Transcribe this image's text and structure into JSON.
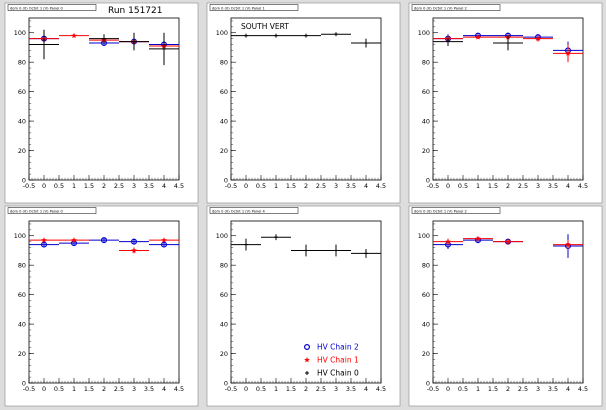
{
  "run_label": "Run 151721",
  "colors": {
    "chain2": "#0000cc",
    "chain1": "#ff0000",
    "chain0": "#000000",
    "pad_bg": "#ffffff",
    "frame_bg": "#dddddd"
  },
  "legend": {
    "entries": [
      {
        "label": "HV Chain 2",
        "color": "#0000cc",
        "marker": "circle-icon"
      },
      {
        "label": "HV Chain 1",
        "color": "#ff0000",
        "marker": "star-icon"
      },
      {
        "label": "HV Chain 0",
        "color": "#000000",
        "marker": "cross-icon"
      }
    ]
  },
  "chart_data": [
    {
      "type": "scatter",
      "title": "dom 0 (0) Octnt 1 (V) Panel 0",
      "annotation": "",
      "xlim": [
        -0.5,
        4.5
      ],
      "ylim": [
        0,
        110
      ],
      "xticks": [
        "-0.5",
        "0",
        "0.5",
        "1",
        "1.5",
        "2",
        "2.5",
        "3",
        "3.5",
        "4",
        "4.5"
      ],
      "yticks": [
        "0",
        "20",
        "40",
        "60",
        "80",
        "100"
      ],
      "series": [
        {
          "name": "HV Chain 2",
          "x": [
            0,
            2,
            3,
            4
          ],
          "y": [
            96,
            93,
            94,
            92
          ],
          "yerr": [
            3,
            2,
            3,
            3
          ]
        },
        {
          "name": "HV Chain 1",
          "x": [
            0,
            1,
            2,
            3,
            4
          ],
          "y": [
            96,
            98,
            95,
            94,
            91
          ],
          "yerr": [
            2,
            1,
            2,
            2,
            2
          ]
        },
        {
          "name": "HV Chain 0",
          "x": [
            0,
            2,
            3,
            4
          ],
          "y": [
            92,
            96,
            94,
            89
          ],
          "yerr": [
            10,
            3,
            6,
            11
          ]
        }
      ]
    },
    {
      "type": "scatter",
      "title": "dom 0 (0) Octnt 1 (V) Panel 1",
      "annotation": "SOUTH VERT",
      "xlim": [
        -0.5,
        4.5
      ],
      "ylim": [
        0,
        110
      ],
      "xticks": [
        "-0.5",
        "0",
        "0.5",
        "1",
        "1.5",
        "2",
        "2.5",
        "3",
        "3.5",
        "4",
        "4.5"
      ],
      "yticks": [
        "0",
        "20",
        "40",
        "60",
        "80",
        "100"
      ],
      "series": [
        {
          "name": "HV Chain 0",
          "x": [
            0,
            1,
            2,
            3,
            4
          ],
          "y": [
            98,
            98,
            98,
            99,
            93
          ],
          "yerr": [
            1,
            1,
            1,
            1,
            3
          ]
        }
      ]
    },
    {
      "type": "scatter",
      "title": "dom 0 (0) Octnt 1 (V) Panel 2",
      "annotation": "",
      "xlim": [
        -0.5,
        4.5
      ],
      "ylim": [
        0,
        110
      ],
      "xticks": [
        "-0.5",
        "0",
        "0.5",
        "1",
        "1.5",
        "2",
        "2.5",
        "3",
        "3.5",
        "4",
        "4.5"
      ],
      "yticks": [
        "0",
        "20",
        "40",
        "60",
        "80",
        "100"
      ],
      "series": [
        {
          "name": "HV Chain 2",
          "x": [
            0,
            1,
            2,
            3,
            4
          ],
          "y": [
            96,
            98,
            98,
            97,
            88
          ],
          "yerr": [
            3,
            1,
            2,
            2,
            6
          ]
        },
        {
          "name": "HV Chain 1",
          "x": [
            0,
            1,
            2,
            3,
            4
          ],
          "y": [
            96,
            97,
            97,
            96,
            86
          ],
          "yerr": [
            2,
            1,
            2,
            2,
            6
          ]
        },
        {
          "name": "HV Chain 0",
          "x": [
            0,
            2
          ],
          "y": [
            94,
            93
          ],
          "yerr": [
            3,
            5
          ]
        }
      ]
    },
    {
      "type": "scatter",
      "title": "dom 0 (0) Octnt 1 (V) Panel 0",
      "annotation": "",
      "xlim": [
        -0.5,
        4.5
      ],
      "ylim": [
        0,
        110
      ],
      "xticks": [
        "-0.5",
        "0",
        "0.5",
        "1",
        "1.5",
        "2",
        "2.5",
        "3",
        "3.5",
        "4",
        "4.5"
      ],
      "yticks": [
        "0",
        "20",
        "40",
        "60",
        "80",
        "100"
      ],
      "series": [
        {
          "name": "HV Chain 2",
          "x": [
            0,
            1,
            2,
            3,
            4
          ],
          "y": [
            94,
            95,
            97,
            96,
            94
          ],
          "yerr": [
            2,
            2,
            2,
            2,
            2
          ]
        },
        {
          "name": "HV Chain 1",
          "x": [
            0,
            1,
            3,
            4
          ],
          "y": [
            97,
            97,
            90,
            97
          ],
          "yerr": [
            1,
            1,
            2,
            1
          ]
        }
      ]
    },
    {
      "type": "scatter",
      "title": "dom 0 (0) Octnt 1 (V) Panel 4",
      "annotation": "",
      "xlim": [
        -0.5,
        4.5
      ],
      "ylim": [
        0,
        110
      ],
      "xticks": [
        "-0.5",
        "0",
        "0.5",
        "1",
        "1.5",
        "2",
        "2.5",
        "3",
        "3.5",
        "4",
        "4.5"
      ],
      "yticks": [
        "0",
        "20",
        "40",
        "60",
        "80",
        "100"
      ],
      "series": [
        {
          "name": "HV Chain 0",
          "x": [
            0,
            1,
            2,
            3,
            4
          ],
          "y": [
            94,
            99,
            90,
            90,
            88
          ],
          "yerr": [
            4,
            2,
            4,
            4,
            3
          ]
        }
      ]
    },
    {
      "type": "scatter",
      "title": "dom 0 (0) Octnt 1 (V) Panel 2",
      "annotation": "",
      "xlim": [
        -0.5,
        4.5
      ],
      "ylim": [
        0,
        110
      ],
      "xticks": [
        "-0.5",
        "0",
        "0.5",
        "1",
        "1.5",
        "2",
        "2.5",
        "3",
        "3.5",
        "4",
        "4.5"
      ],
      "yticks": [
        "0",
        "20",
        "40",
        "60",
        "80",
        "100"
      ],
      "series": [
        {
          "name": "HV Chain 2",
          "x": [
            0,
            1,
            2,
            4
          ],
          "y": [
            94,
            97,
            96,
            93
          ],
          "yerr": [
            3,
            2,
            2,
            8
          ]
        },
        {
          "name": "HV Chain 1",
          "x": [
            0,
            1,
            2,
            4
          ],
          "y": [
            96,
            98,
            96,
            94
          ],
          "yerr": [
            2,
            1,
            2,
            3
          ]
        }
      ]
    }
  ]
}
